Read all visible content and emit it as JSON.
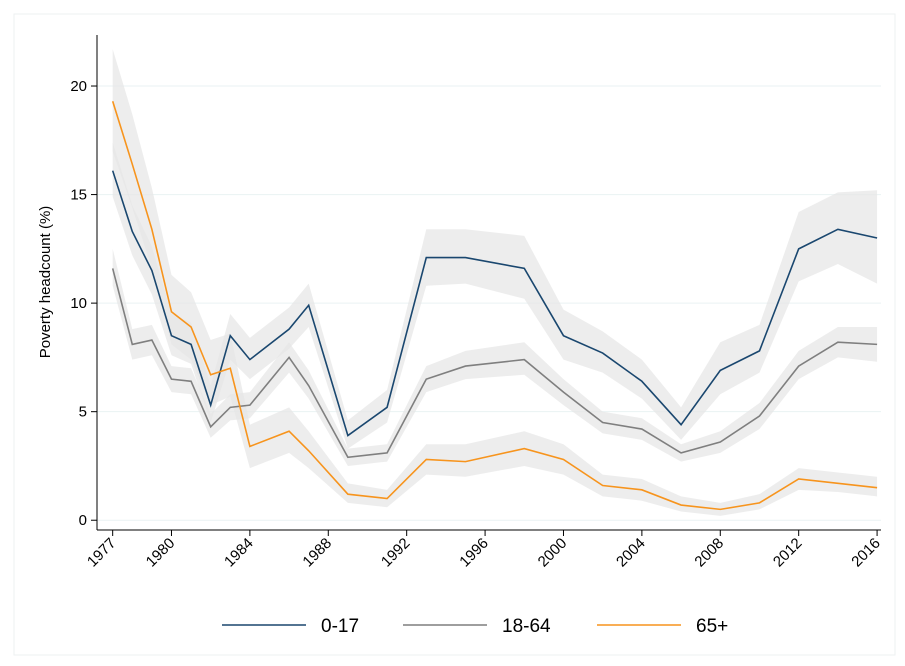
{
  "chart_data": {
    "type": "line",
    "y_label": "Poverty headcount (%)",
    "x": [
      1977,
      1978,
      1979,
      1980,
      1981,
      1982,
      1983,
      1984,
      1986,
      1987,
      1989,
      1991,
      1993,
      1995,
      1998,
      2000,
      2002,
      2004,
      2006,
      2008,
      2010,
      2012,
      2014,
      2016
    ],
    "xlim": [
      1976.2,
      2016.2
    ],
    "xticks": [
      1977,
      1980,
      1984,
      1988,
      1992,
      1996,
      2000,
      2004,
      2008,
      2012,
      2016
    ],
    "ylim": [
      -0.45,
      22.35
    ],
    "yticks": [
      0,
      5,
      10,
      15,
      20
    ],
    "grid": true,
    "band_color": "#e6e6e6",
    "series": [
      {
        "name": "0-17",
        "color": "#1a476f",
        "values": [
          16.1,
          13.3,
          11.5,
          8.5,
          8.1,
          5.3,
          8.5,
          7.4,
          8.8,
          9.9,
          3.9,
          5.2,
          12.1,
          12.1,
          11.6,
          8.5,
          7.7,
          6.4,
          4.4,
          6.9,
          7.8,
          12.5,
          13.4,
          13.0
        ],
        "ci_lower": [
          14.9,
          12.2,
          10.4,
          7.6,
          7.2,
          4.5,
          7.4,
          6.5,
          7.9,
          8.9,
          3.3,
          4.5,
          10.8,
          10.9,
          10.2,
          7.4,
          6.8,
          5.6,
          3.7,
          5.8,
          6.8,
          11.0,
          11.8,
          10.9
        ],
        "ci_upper": [
          17.4,
          14.5,
          12.6,
          9.5,
          9.1,
          6.2,
          9.5,
          8.4,
          9.8,
          10.9,
          4.6,
          6.0,
          13.4,
          13.4,
          13.1,
          9.7,
          8.7,
          7.4,
          5.2,
          8.2,
          9.0,
          14.2,
          15.1,
          15.2
        ]
      },
      {
        "name": "18-64",
        "color": "#7f7f7f",
        "values": [
          11.6,
          8.1,
          8.3,
          6.5,
          6.4,
          4.3,
          5.2,
          5.3,
          7.5,
          6.2,
          2.9,
          3.1,
          6.5,
          7.1,
          7.4,
          5.9,
          4.5,
          4.2,
          3.1,
          3.6,
          4.8,
          7.1,
          8.2,
          8.1
        ],
        "ci_lower": [
          10.8,
          7.4,
          7.6,
          5.9,
          5.8,
          3.8,
          4.6,
          4.7,
          6.8,
          5.6,
          2.5,
          2.7,
          5.9,
          6.5,
          6.7,
          5.3,
          4.0,
          3.7,
          2.7,
          3.1,
          4.2,
          6.5,
          7.5,
          7.3
        ],
        "ci_upper": [
          12.5,
          8.8,
          9.0,
          7.1,
          7.0,
          4.9,
          5.8,
          5.9,
          8.2,
          6.9,
          3.3,
          3.5,
          7.1,
          7.8,
          8.2,
          6.5,
          5.0,
          4.7,
          3.5,
          4.1,
          5.4,
          7.8,
          8.9,
          8.9
        ]
      },
      {
        "name": "65+",
        "color": "#f7941d",
        "values": [
          19.3,
          16.4,
          13.4,
          9.6,
          8.9,
          6.7,
          7.0,
          3.4,
          4.1,
          3.2,
          1.2,
          1.0,
          2.8,
          2.7,
          3.3,
          2.8,
          1.6,
          1.4,
          0.7,
          0.5,
          0.8,
          1.9,
          1.7,
          1.5
        ],
        "ci_lower": [
          17.0,
          14.4,
          11.6,
          8.1,
          7.4,
          5.3,
          5.7,
          2.4,
          3.1,
          2.4,
          0.8,
          0.6,
          2.1,
          2.0,
          2.5,
          2.1,
          1.1,
          0.9,
          0.4,
          0.2,
          0.5,
          1.4,
          1.3,
          1.1
        ],
        "ci_upper": [
          21.7,
          18.7,
          15.3,
          11.3,
          10.5,
          8.3,
          8.6,
          4.4,
          5.2,
          4.1,
          1.7,
          1.4,
          3.5,
          3.5,
          4.1,
          3.5,
          2.1,
          1.9,
          1.1,
          0.8,
          1.2,
          2.4,
          2.2,
          2.0
        ]
      }
    ]
  }
}
